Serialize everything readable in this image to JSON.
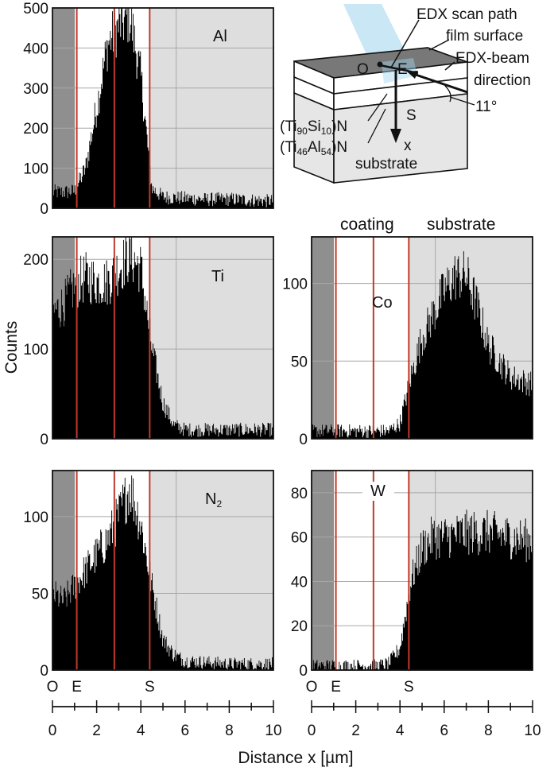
{
  "figure": {
    "ylabel": "Counts",
    "xlabel": "Distance x [µm]",
    "region_labels": {
      "coating": "coating",
      "substrate": "substrate"
    },
    "colors": {
      "bars": "#000000",
      "interface_lines": "#c0392b",
      "substrate_shade": "#dedede",
      "outside_shade": "#8f8f8f",
      "coating_fill": "#ffffff",
      "grid": "#a8a8a8",
      "beam": "#9fd4ee"
    }
  },
  "schematic": {
    "scan_path": "EDX scan path",
    "film_surface": "film surface",
    "beam_dir_line1": "EDX-beam",
    "beam_dir_line2": "direction",
    "angle": "11°",
    "point_o": "O",
    "point_e": "E",
    "point_s": "S",
    "axis_x": "x",
    "layer1": {
      "pre": "(Ti",
      "s1": "90",
      "mid": "Si",
      "s2": "10",
      "post": ")N"
    },
    "layer2": {
      "pre": "(Ti",
      "s1": "46",
      "mid": "Al",
      "s2": "54",
      "post": ")N"
    },
    "substrate": "substrate"
  },
  "chart_data": [
    {
      "type": "bar",
      "panel": "Al",
      "element": "Al",
      "xlim": [
        0,
        10
      ],
      "ylim": [
        0,
        500
      ],
      "yticks": [
        0,
        100,
        200,
        300,
        400,
        500
      ],
      "x": [
        0,
        0.5,
        1.0,
        1.5,
        2.0,
        2.5,
        3.0,
        3.5,
        4.0,
        4.5,
        5.0,
        6.0,
        7.0,
        8.0,
        9.0,
        10.0
      ],
      "y": [
        40,
        40,
        42,
        100,
        250,
        410,
        455,
        480,
        330,
        50,
        28,
        25,
        22,
        23,
        20,
        18
      ]
    },
    {
      "type": "bar",
      "panel": "Ti",
      "element": "Ti",
      "xlim": [
        0,
        10
      ],
      "ylim": [
        0,
        225
      ],
      "yticks": [
        0,
        100,
        200
      ],
      "x": [
        0,
        0.5,
        1.0,
        1.5,
        2.0,
        2.5,
        3.0,
        3.5,
        4.0,
        4.5,
        5.0,
        5.5,
        6.0,
        7.0,
        8.0,
        9.0,
        10.0
      ],
      "y": [
        140,
        150,
        170,
        180,
        175,
        175,
        190,
        205,
        190,
        100,
        40,
        15,
        10,
        10,
        10,
        10,
        10
      ]
    },
    {
      "type": "bar",
      "panel": "N2",
      "element": "N",
      "element_sub": "2",
      "xlim": [
        0,
        10
      ],
      "ylim": [
        0,
        130
      ],
      "yticks": [
        0,
        50,
        100
      ],
      "x": [
        0,
        0.5,
        1.0,
        1.5,
        2.0,
        2.5,
        3.0,
        3.5,
        4.0,
        4.5,
        5.0,
        5.5,
        6.0,
        7.0,
        8.0,
        9.0,
        10.0
      ],
      "y": [
        50,
        45,
        55,
        65,
        75,
        85,
        100,
        120,
        95,
        55,
        20,
        10,
        6,
        5,
        4,
        4,
        4
      ]
    },
    {
      "type": "bar",
      "panel": "Co",
      "element": "Co",
      "xlim": [
        0,
        10
      ],
      "ylim": [
        0,
        130
      ],
      "yticks": [
        0,
        50,
        100
      ],
      "x": [
        0,
        0.5,
        1.0,
        1.5,
        2.0,
        2.5,
        3.0,
        3.5,
        4.0,
        4.5,
        5.0,
        5.5,
        6.0,
        6.5,
        7.0,
        7.5,
        8.0,
        8.5,
        9.0,
        10.0
      ],
      "y": [
        5,
        5,
        5,
        5,
        5,
        5,
        5,
        5,
        10,
        40,
        65,
        80,
        95,
        105,
        105,
        85,
        60,
        50,
        40,
        35
      ]
    },
    {
      "type": "bar",
      "panel": "W",
      "element": "W",
      "xlim": [
        0,
        10
      ],
      "ylim": [
        0,
        90
      ],
      "yticks": [
        0,
        20,
        40,
        60,
        80
      ],
      "x": [
        0,
        0.5,
        1.0,
        1.5,
        2.0,
        2.5,
        3.0,
        3.5,
        4.0,
        4.5,
        5.0,
        5.5,
        6.0,
        7.0,
        8.0,
        9.0,
        10.0
      ],
      "y": [
        2,
        2,
        2,
        2,
        2,
        2,
        2,
        3,
        10,
        40,
        55,
        60,
        60,
        62,
        62,
        60,
        58
      ]
    }
  ],
  "markers": {
    "interfaces_um": [
      1.1,
      2.8,
      4.4
    ],
    "boundary_grid_um": 5.6,
    "labels": [
      {
        "text": "O",
        "x": 0
      },
      {
        "text": "E",
        "x": 1.1
      },
      {
        "text": "S",
        "x": 4.4
      }
    ]
  },
  "xaxis": {
    "ticks": [
      0,
      2,
      4,
      6,
      8,
      10
    ],
    "minor_step": 1
  }
}
